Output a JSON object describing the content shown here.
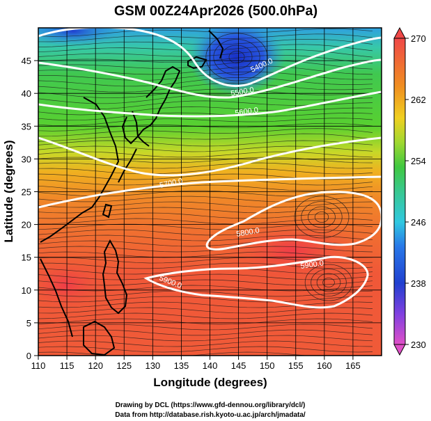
{
  "title": "GSM 00Z24Apr2026 (500.0hPa)",
  "xlabel": "Longitude (degrees)",
  "ylabel": "Latitude  (degrees)",
  "x_ticks": [
    "110",
    "115",
    "120",
    "125",
    "130",
    "135",
    "140",
    "145",
    "150",
    "155",
    "160",
    "165"
  ],
  "y_ticks": [
    "0",
    "5",
    "10",
    "15",
    "20",
    "25",
    "30",
    "35",
    "40",
    "45"
  ],
  "colorbar": {
    "labels": [
      "230",
      "238",
      "246",
      "254",
      "262",
      "270"
    ],
    "min": 230,
    "max": 270
  },
  "contour_labels": [
    "5400.0",
    "5500.0",
    "5600.0",
    "5700.0",
    "5800.0",
    "5900.0",
    "5900.0"
  ],
  "credits": [
    "Drawing by DCL (https://www.gfd-dennou.org/library/dcl/)",
    "Data from http://database.rish.kyoto-u.ac.jp/arch/jmadata/"
  ],
  "colors": {
    "cold": "#1f3fd0",
    "cyan": "#2fc8d8",
    "green": "#3cc53c",
    "yellow": "#e8e020",
    "orange": "#f08020",
    "red": "#f04040",
    "magenta": "#e040c0",
    "contour": "#ffffff",
    "coast": "#000000"
  },
  "chart_data": {
    "type": "heatmap",
    "title": "GSM 00Z24Apr2026 (500.0hPa)",
    "xlabel": "Longitude (degrees)",
    "ylabel": "Latitude  (degrees)",
    "xlim": [
      110,
      170
    ],
    "ylim": [
      0,
      50
    ],
    "colorbar_range": [
      230,
      270
    ],
    "colorbar_ticks": [
      230,
      238,
      246,
      254,
      262,
      270
    ],
    "height_contours": [
      5400,
      5500,
      5600,
      5700,
      5800,
      5900
    ]
  }
}
